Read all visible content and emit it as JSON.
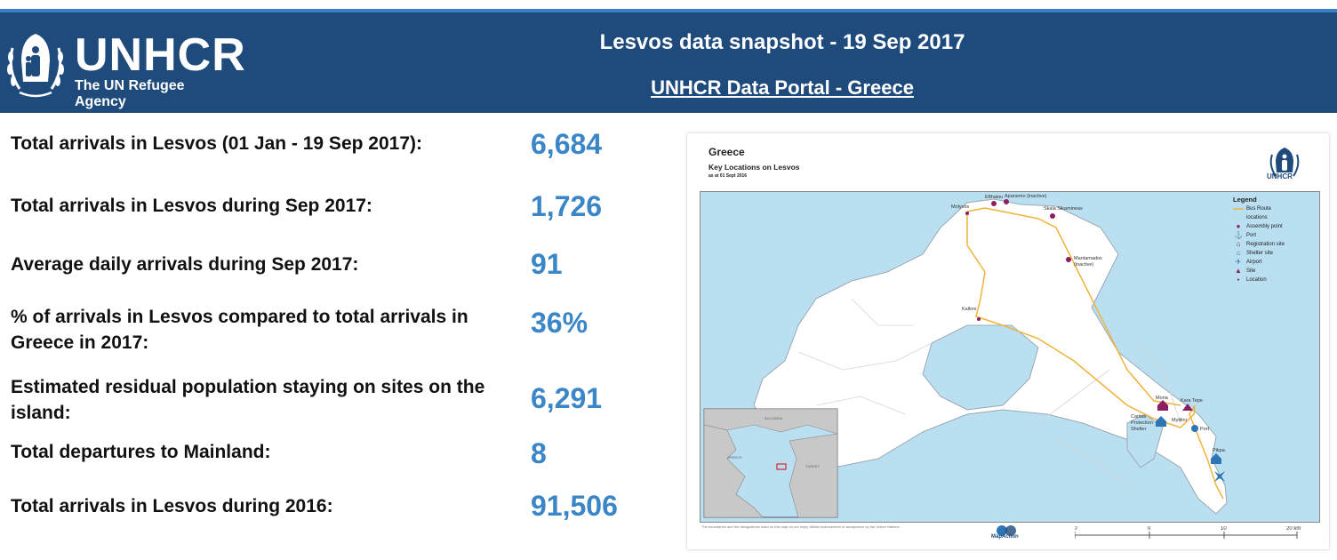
{
  "header": {
    "org_name": "UNHCR",
    "org_tagline": "The UN Refugee Agency",
    "title": "Lesvos data snapshot  - 19 Sep 2017",
    "portal_link": "UNHCR Data Portal - Greece"
  },
  "stats": [
    {
      "label": "Total arrivals in Lesvos (01 Jan - 19 Sep 2017):",
      "value": "6,684"
    },
    {
      "label": "Total arrivals in Lesvos during Sep 2017:",
      "value": "1,726"
    },
    {
      "label": "Average daily arrivals during Sep 2017:",
      "value": "91"
    },
    {
      "label": "% of arrivals in Lesvos compared to total arrivals in Greece in 2017:",
      "value": "36%"
    },
    {
      "label": "Estimated residual population staying on sites on the island:",
      "value": "6,291"
    },
    {
      "label": "Total departures to Mainland:",
      "value": "8"
    },
    {
      "label": "Total arrivals in Lesvos during 2016:",
      "value": "91,506"
    }
  ],
  "map": {
    "title": "Greece",
    "subtitle": "Key Locations on Lesvos",
    "date": "as at 01 Sept 2016",
    "logo_text": "UNHCR",
    "legend": {
      "title": "Legend",
      "items": [
        {
          "symbol": "bus-route-line",
          "label": "Bus Route"
        },
        {
          "symbol": "none",
          "label": "locations"
        },
        {
          "symbol": "assembly-point-icon",
          "label": "Assembly point"
        },
        {
          "symbol": "port-icon",
          "label": "Port"
        },
        {
          "symbol": "registration-site-icon",
          "label": "Registration site"
        },
        {
          "symbol": "shelter-site-icon",
          "label": "Shelter site"
        },
        {
          "symbol": "airport-icon",
          "label": "Airport"
        },
        {
          "symbol": "site-icon",
          "label": "Site"
        },
        {
          "symbol": "location-dot",
          "label": "Location"
        }
      ]
    },
    "places": {
      "molyvos": "Molyvos",
      "efthalou": "Efthalou",
      "apanemo": "Apanemo (inactive)",
      "skala": "Skala Sikamineas",
      "mantamados": "Mantamados",
      "mantamados_status": "(inactive)",
      "kalloni": "Kalloni",
      "moria": "Moria",
      "kara_tepe": "Kara Tepe",
      "caritas_1": "Caritas",
      "caritas_2": "Protection",
      "caritas_3": "Shelter",
      "mytilini": "Mytilini",
      "port": "Port",
      "pikpa": "Pikpa"
    },
    "inset": {
      "labels": [
        "BULGARIA",
        "GREECE",
        "TURKEY"
      ]
    },
    "footer_note": "The boundaries and the designations used on this map do not imply official endorsement or acceptance by the United Nations.",
    "credit": "MapAction",
    "scale": {
      "ticks": [
        "10",
        "0",
        "10",
        "20 km"
      ]
    },
    "colors": {
      "sea": "#b9dff1",
      "land": "#ffffff",
      "route": "#f0b43c",
      "marker": "#8a1f63",
      "port": "#2e75b6"
    }
  },
  "colors": {
    "header_bg": "#1f4a7c",
    "value_blue": "#3a86c6"
  }
}
